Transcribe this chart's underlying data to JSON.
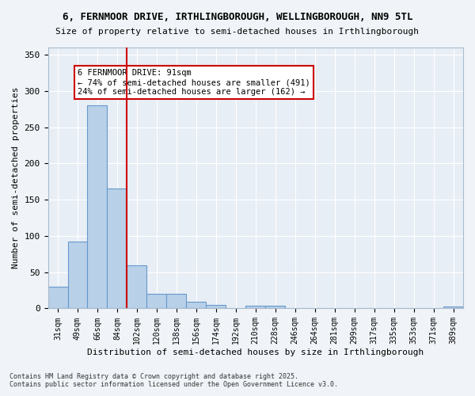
{
  "title_line1": "6, FERNMOOR DRIVE, IRTHLINGBOROUGH, WELLINGBOROUGH, NN9 5TL",
  "title_line2": "Size of property relative to semi-detached houses in Irthlingborough",
  "xlabel": "Distribution of semi-detached houses by size in Irthlingborough",
  "ylabel": "Number of semi-detached properties",
  "categories": [
    "31sqm",
    "49sqm",
    "66sqm",
    "84sqm",
    "102sqm",
    "120sqm",
    "138sqm",
    "156sqm",
    "174sqm",
    "192sqm",
    "210sqm",
    "228sqm",
    "246sqm",
    "264sqm",
    "281sqm",
    "299sqm",
    "317sqm",
    "335sqm",
    "353sqm",
    "371sqm",
    "389sqm"
  ],
  "values": [
    30,
    92,
    280,
    165,
    59,
    20,
    20,
    9,
    5,
    0,
    4,
    4,
    0,
    0,
    0,
    0,
    0,
    0,
    0,
    0,
    3
  ],
  "bar_color": "#b8d0e8",
  "bar_edge_color": "#6699cc",
  "vline_x": 3,
  "vline_color": "#cc0000",
  "annotation_title": "6 FERNMOOR DRIVE: 91sqm",
  "annotation_line2": "← 74% of semi-detached houses are smaller (491)",
  "annotation_line3": "24% of semi-detached houses are larger (162) →",
  "annotation_box_color": "#cc0000",
  "ylim": [
    0,
    360
  ],
  "yticks": [
    0,
    50,
    100,
    150,
    200,
    250,
    300,
    350
  ],
  "bg_color": "#e8eef5",
  "footer_line1": "Contains HM Land Registry data © Crown copyright and database right 2025.",
  "footer_line2": "Contains public sector information licensed under the Open Government Licence v3.0."
}
